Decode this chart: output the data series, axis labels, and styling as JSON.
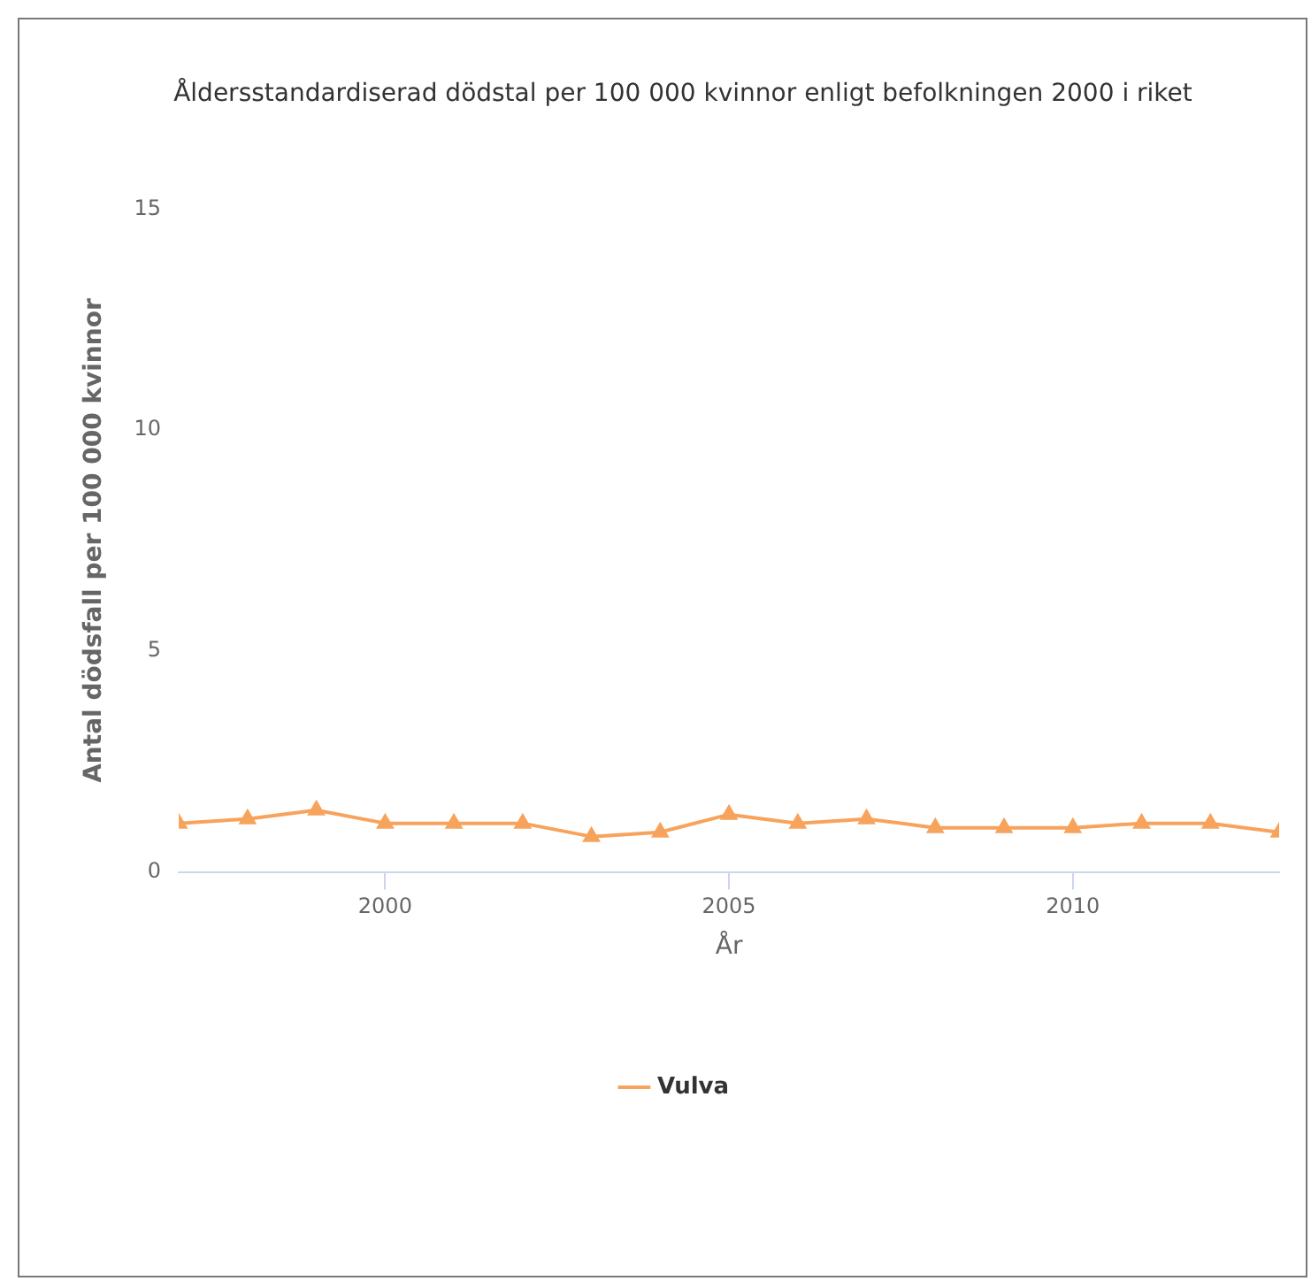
{
  "chart_data": {
    "type": "line",
    "title": "Åldersstandardiserad dödstal per 100 000 kvinnor enligt befolkningen 2000 i riket",
    "xlabel": "År",
    "ylabel": "Antal dödsfall per 100 000 kvinnor",
    "x": [
      1997,
      1998,
      1999,
      2000,
      2001,
      2002,
      2003,
      2004,
      2005,
      2006,
      2007,
      2008,
      2009,
      2010,
      2011,
      2012,
      2013
    ],
    "series": [
      {
        "name": "Vulva",
        "color": "#f7a35c",
        "values": [
          1.1,
          1.2,
          1.4,
          1.1,
          1.1,
          1.1,
          0.8,
          0.9,
          1.3,
          1.1,
          1.2,
          1.0,
          1.0,
          1.0,
          1.1,
          1.1,
          0.9
        ]
      }
    ],
    "xlim": [
      1997,
      2013
    ],
    "xticks": [
      2000,
      2005,
      2010
    ],
    "ylim": [
      0,
      15
    ],
    "yticks": [
      0,
      5,
      10,
      15
    ],
    "grid": false,
    "legend": "bottom",
    "marker": "triangle",
    "line_style": "solid"
  }
}
